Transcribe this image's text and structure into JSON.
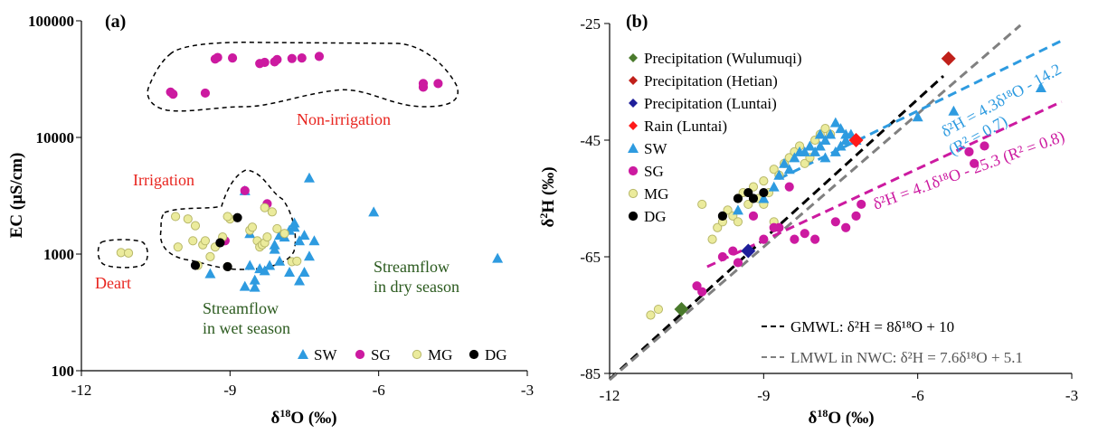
{
  "chart_data": [
    {
      "panel": "(a)",
      "type": "scatter",
      "xlabel_main": "δ",
      "xlabel_sup": "18",
      "xlabel_rest": "O (‰)",
      "ylabel": "EC (μS/cm)",
      "xlim": [
        -12,
        -3
      ],
      "ylim": [
        100,
        100000
      ],
      "yscale": "log",
      "xticks": [
        "-12",
        "-9",
        "-6",
        "-3"
      ],
      "yticks": [
        "100",
        "1000",
        "10000",
        "100000"
      ],
      "legend": [
        "SW",
        "SG",
        "MG",
        "DG"
      ],
      "annotations": {
        "non_irrigation": "Non-irrigation",
        "irrigation": "Irrigation",
        "deart": "Deart",
        "wet_1": "Streamflow",
        "wet_2": "in wet season",
        "dry_1": "Streamflow",
        "dry_2": "in dry season"
      },
      "series": [
        {
          "name": "SW",
          "marker": "triangle",
          "color": "#2e9be0",
          "points": [
            [
              -8.7,
              3500
            ],
            [
              -7.4,
              4500
            ],
            [
              -6.1,
              2300
            ],
            [
              -3.6,
              920
            ],
            [
              -9.4,
              680
            ],
            [
              -8.7,
              530
            ],
            [
              -8.5,
              520
            ],
            [
              -8.5,
              600
            ],
            [
              -8.3,
              720
            ],
            [
              -8.2,
              800
            ],
            [
              -8.0,
              870
            ],
            [
              -7.8,
              700
            ],
            [
              -7.6,
              590
            ],
            [
              -7.5,
              700
            ],
            [
              -7.4,
              960
            ],
            [
              -7.6,
              1300
            ],
            [
              -7.5,
              1450
            ],
            [
              -7.3,
              1300
            ],
            [
              -7.7,
              1700
            ],
            [
              -7.9,
              1400
            ],
            [
              -8.0,
              1450
            ],
            [
              -8.1,
              1200
            ],
            [
              -7.8,
              1600
            ],
            [
              -7.7,
              1850
            ],
            [
              -8.1,
              1100
            ],
            [
              -8.6,
              1500
            ],
            [
              -8.6,
              800
            ],
            [
              -8.4,
              750
            ]
          ]
        },
        {
          "name": "SG",
          "marker": "circle",
          "color": "#cc1aa0",
          "points": [
            [
              -10.2,
              24500
            ],
            [
              -10.15,
              23500
            ],
            [
              -9.3,
              47000
            ],
            [
              -9.25,
              48500
            ],
            [
              -8.95,
              48000
            ],
            [
              -8.4,
              43000
            ],
            [
              -8.3,
              44000
            ],
            [
              -8.1,
              44500
            ],
            [
              -8.05,
              46500
            ],
            [
              -7.75,
              47500
            ],
            [
              -7.55,
              48000
            ],
            [
              -7.2,
              49500
            ],
            [
              -5.1,
              27000
            ],
            [
              -5.1,
              29000
            ],
            [
              -4.8,
              29000
            ],
            [
              -9.5,
              24000
            ],
            [
              -8.7,
              3500
            ],
            [
              -8.25,
              2700
            ],
            [
              -9.1,
              1300
            ]
          ]
        },
        {
          "name": "MG",
          "marker": "circle",
          "color": "#ebeb9c",
          "points": [
            [
              -11.2,
              1030
            ],
            [
              -11.05,
              1020
            ],
            [
              -10.1,
              2100
            ],
            [
              -9.85,
              2000
            ],
            [
              -9.7,
              1750
            ],
            [
              -10.05,
              1150
            ],
            [
              -9.75,
              1300
            ],
            [
              -9.55,
              1200
            ],
            [
              -9.5,
              1300
            ],
            [
              -9.4,
              950
            ],
            [
              -9.3,
              1150
            ],
            [
              -9.15,
              1400
            ],
            [
              -9.0,
              2000
            ],
            [
              -8.6,
              1600
            ],
            [
              -8.55,
              1700
            ],
            [
              -8.45,
              1300
            ],
            [
              -8.4,
              1150
            ],
            [
              -8.35,
              1200
            ],
            [
              -8.3,
              1250
            ],
            [
              -8.25,
              1400
            ],
            [
              -8.15,
              2300
            ],
            [
              -8.05,
              1650
            ],
            [
              -7.9,
              1500
            ],
            [
              -7.75,
              860
            ],
            [
              -7.65,
              870
            ],
            [
              -8.3,
              2500
            ],
            [
              -9.05,
              2100
            ],
            [
              -9.65,
              800
            ],
            [
              -9.05,
              780
            ]
          ]
        },
        {
          "name": "DG",
          "marker": "circle",
          "color": "#000000",
          "points": [
            [
              -9.7,
              800
            ],
            [
              -9.2,
              1250
            ],
            [
              -9.05,
              780
            ],
            [
              -8.85,
              2050
            ]
          ]
        }
      ]
    },
    {
      "panel": "(b)",
      "type": "scatter",
      "xlabel_main": "δ",
      "xlabel_sup": "18",
      "xlabel_rest": "O (‰)",
      "ylabel_main": "δ",
      "ylabel_sup": "2",
      "ylabel_rest": "H (‰)",
      "xlim": [
        -12,
        -3
      ],
      "ylim": [
        -85,
        -25
      ],
      "xticks": [
        "-12",
        "-9",
        "-6",
        "-3"
      ],
      "yticks": [
        "-85",
        "-65",
        "-45",
        "-25"
      ],
      "legend": [
        "Precipitation (Wulumuqi)",
        "Precipitation (Hetian)",
        "Precipitation (Luntai)",
        "Rain (Luntai)",
        "SW",
        "SG",
        "MG",
        "DG"
      ],
      "line_labels": {
        "gmwl": "GMWL: δ²H = 8δ¹⁸O + 10",
        "lmwl": "LMWL in NWC: δ²H = 7.6δ¹⁸O + 5.1",
        "sw_fit_1": "δ²H = 4.3δ¹⁸O - 14.2",
        "sw_fit_2": "(R² = 0.7)",
        "sg_fit": "δ²H = 4.1δ¹⁸O - 25.3 (R² = 0.8)"
      },
      "lines": [
        {
          "name": "GMWL",
          "slope": 8,
          "intercept": 10,
          "x": [
            -12,
            -5.5
          ],
          "color": "#000000"
        },
        {
          "name": "LMWL",
          "slope": 7.6,
          "intercept": 5.1,
          "x": [
            -12,
            -4.0
          ],
          "color": "#808080"
        },
        {
          "name": "SW fit",
          "slope": 4.3,
          "intercept": -14.2,
          "x": [
            -8.7,
            -3.2
          ],
          "color": "#2e9be0"
        },
        {
          "name": "SG fit",
          "slope": 4.1,
          "intercept": -25.3,
          "x": [
            -10.1,
            -3.2
          ],
          "color": "#cc1aa0"
        }
      ],
      "series": [
        {
          "name": "Precipitation (Wulumuqi)",
          "marker": "diamond",
          "color": "#4a7a2c",
          "points": [
            [
              -10.6,
              -74
            ]
          ]
        },
        {
          "name": "Precipitation (Hetian)",
          "marker": "diamond",
          "color": "#c0201a",
          "points": [
            [
              -5.4,
              -31
            ]
          ]
        },
        {
          "name": "Precipitation (Luntai)",
          "marker": "diamond",
          "color": "#1e1e9a",
          "points": [
            [
              -9.3,
              -64
            ]
          ]
        },
        {
          "name": "Rain (Luntai)",
          "marker": "diamond",
          "color": "#ff1a1a",
          "points": [
            [
              -7.2,
              -45
            ]
          ]
        },
        {
          "name": "SW",
          "marker": "triangle",
          "color": "#2e9be0",
          "points": [
            [
              -3.6,
              -36
            ],
            [
              -6.0,
              -41
            ],
            [
              -5.3,
              -40
            ],
            [
              -7.6,
              -42
            ],
            [
              -7.5,
              -43
            ],
            [
              -7.4,
              -44
            ],
            [
              -7.7,
              -44
            ],
            [
              -7.8,
              -45
            ],
            [
              -7.9,
              -46
            ],
            [
              -8.0,
              -47
            ],
            [
              -8.2,
              -47
            ],
            [
              -8.4,
              -48
            ],
            [
              -8.6,
              -49
            ],
            [
              -7.6,
              -47
            ],
            [
              -7.4,
              -45
            ],
            [
              -7.3,
              -44
            ],
            [
              -7.9,
              -44
            ],
            [
              -8.1,
              -46
            ],
            [
              -8.3,
              -47
            ],
            [
              -8.5,
              -50
            ],
            [
              -8.8,
              -53
            ],
            [
              -9.0,
              -55
            ],
            [
              -9.5,
              -57
            ],
            [
              -7.8,
              -48
            ],
            [
              -7.5,
              -46
            ],
            [
              -7.2,
              -45
            ],
            [
              -8.7,
              -51
            ]
          ]
        },
        {
          "name": "SG",
          "marker": "circle",
          "color": "#cc1aa0",
          "points": [
            [
              -10.3,
              -70
            ],
            [
              -10.2,
              -71
            ],
            [
              -9.5,
              -66
            ],
            [
              -9.0,
              -62
            ],
            [
              -8.7,
              -60
            ],
            [
              -8.5,
              -53
            ],
            [
              -8.4,
              -62
            ],
            [
              -8.2,
              -61
            ],
            [
              -8.0,
              -62
            ],
            [
              -7.6,
              -59
            ],
            [
              -7.4,
              -60
            ],
            [
              -7.2,
              -58
            ],
            [
              -5.0,
              -47
            ],
            [
              -4.7,
              -46
            ],
            [
              -4.9,
              -49
            ],
            [
              -7.1,
              -56
            ],
            [
              -9.2,
              -58
            ],
            [
              -9.6,
              -64
            ],
            [
              -9.8,
              -65
            ],
            [
              -8.8,
              -60
            ]
          ]
        },
        {
          "name": "MG",
          "marker": "circle",
          "color": "#ebeb9c",
          "points": [
            [
              -11.2,
              -75
            ],
            [
              -11.05,
              -74
            ],
            [
              -10.2,
              -56
            ],
            [
              -10.0,
              -62
            ],
            [
              -9.9,
              -60
            ],
            [
              -9.8,
              -59
            ],
            [
              -9.7,
              -57
            ],
            [
              -9.6,
              -58
            ],
            [
              -9.5,
              -55
            ],
            [
              -9.4,
              -54
            ],
            [
              -9.3,
              -56
            ],
            [
              -9.2,
              -53
            ],
            [
              -9.1,
              -55
            ],
            [
              -9.0,
              -52
            ],
            [
              -8.9,
              -54
            ],
            [
              -8.8,
              -50
            ],
            [
              -8.7,
              -51
            ],
            [
              -8.6,
              -49
            ],
            [
              -8.5,
              -48
            ],
            [
              -8.4,
              -47
            ],
            [
              -8.3,
              -46
            ],
            [
              -8.2,
              -49
            ],
            [
              -8.1,
              -48
            ],
            [
              -7.9,
              -44
            ],
            [
              -7.8,
              -43
            ],
            [
              -8.0,
              -45
            ],
            [
              -7.7,
              -44
            ],
            [
              -9.5,
              -59
            ],
            [
              -9.0,
              -56
            ],
            [
              -8.8,
              -59
            ]
          ]
        },
        {
          "name": "DG",
          "marker": "circle",
          "color": "#000000",
          "points": [
            [
              -9.8,
              -58
            ],
            [
              -9.5,
              -55
            ],
            [
              -9.3,
              -54
            ],
            [
              -9.2,
              -55
            ],
            [
              -9.0,
              -54
            ]
          ]
        }
      ]
    }
  ]
}
